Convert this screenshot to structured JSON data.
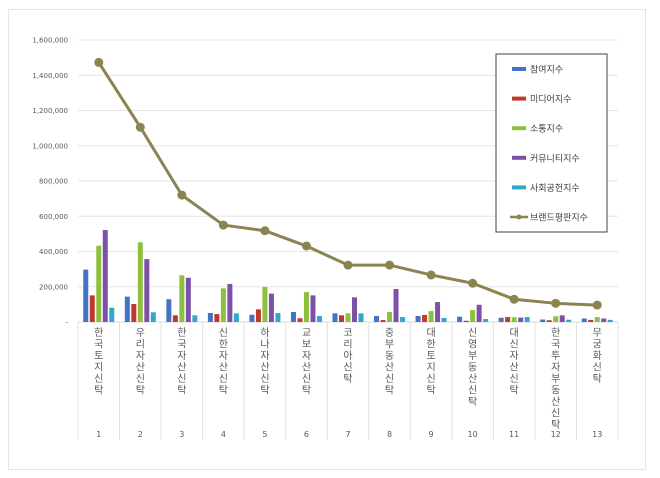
{
  "chart_data": {
    "type": "bar+line",
    "title": "",
    "xlabel": "",
    "ylabel": "",
    "ylim": [
      0,
      1600000
    ],
    "yticks": [
      "-",
      "200,000",
      "400,000",
      "600,000",
      "800,000",
      "1,000,000",
      "1,200,000",
      "1,400,000",
      "1,600,000"
    ],
    "grid": true,
    "legend_position": "upper-right",
    "categories": [
      "한국토지신탁",
      "우리자산신탁",
      "한국자산신탁",
      "신한자산신탁",
      "하나자산신탁",
      "교보자산신탁",
      "코리아신탁",
      "중부동산신탁",
      "대한토지신탁",
      "신영부동산신탁",
      "대신자산신탁",
      "한국투자부동산신탁",
      "무궁화신탁"
    ],
    "ranks": [
      "1",
      "2",
      "3",
      "4",
      "5",
      "6",
      "7",
      "8",
      "9",
      "10",
      "11",
      "12",
      "13"
    ],
    "series": [
      {
        "name": "참여지수",
        "type": "bar",
        "color": "#4472c4",
        "values": [
          297000,
          144000,
          129000,
          51000,
          41000,
          57000,
          49000,
          34000,
          34000,
          30000,
          24000,
          14000,
          20000
        ]
      },
      {
        "name": "미디어지수",
        "type": "bar",
        "color": "#c0392b",
        "values": [
          151000,
          102000,
          38000,
          45000,
          72000,
          21000,
          38000,
          11000,
          40000,
          7000,
          28000,
          10000,
          12000
        ]
      },
      {
        "name": "소통지수",
        "type": "bar",
        "color": "#8fbf3f",
        "values": [
          433000,
          452000,
          265000,
          191000,
          199000,
          170000,
          49000,
          57000,
          62000,
          68000,
          27000,
          33000,
          28000
        ]
      },
      {
        "name": "커뮤니티지수",
        "type": "bar",
        "color": "#7b52a8",
        "values": [
          522000,
          357000,
          251000,
          216000,
          161000,
          151000,
          140000,
          187000,
          113000,
          98000,
          25000,
          38000,
          20000
        ]
      },
      {
        "name": "사회공헌지수",
        "type": "bar",
        "color": "#2eaac8",
        "values": [
          81000,
          55000,
          38000,
          49000,
          51000,
          34000,
          49000,
          28000,
          23000,
          17000,
          28000,
          13000,
          12000
        ]
      },
      {
        "name": "브랜드평판지수",
        "type": "line",
        "color": "#8c8450",
        "values": [
          1473000,
          1105000,
          720000,
          550000,
          518000,
          431000,
          323000,
          323000,
          267000,
          220000,
          129000,
          106000,
          96000
        ]
      }
    ]
  }
}
